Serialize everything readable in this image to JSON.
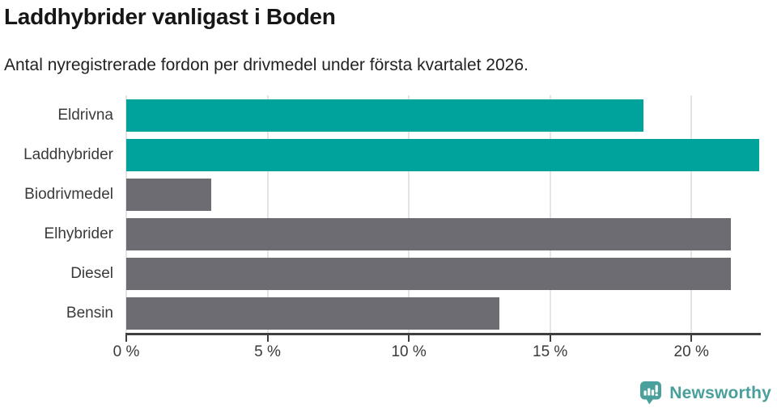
{
  "title": "Laddhybrider vanligast i Boden",
  "subtitle": "Antal nyregistrerade fordon per drivmedel under första kvartalet 2026.",
  "brand": {
    "name": "Newsworthy",
    "icon": "newsworthy-speech-bubble-barchart-icon",
    "color": "#49a09b"
  },
  "colors": {
    "accent_teal": "#00a39b",
    "neutral_gray": "#6c6c72",
    "gridline": "#e3e4e6",
    "axis": "#3f3f3f",
    "title_text": "#161616",
    "label_text": "#3a3a3a",
    "background": "#ffffff"
  },
  "chart_data": {
    "type": "bar",
    "orientation": "horizontal",
    "title": "Laddhybrider vanligast i Boden",
    "subtitle": "Antal nyregistrerade fordon per drivmedel under första kvartalet 2026.",
    "categories": [
      "Eldrivna",
      "Laddhybrider",
      "Biodrivmedel",
      "Elhybrider",
      "Diesel",
      "Bensin"
    ],
    "values": [
      18.3,
      22.4,
      3.0,
      21.4,
      21.4,
      13.2
    ],
    "unit": "%",
    "bar_colors": [
      "#00a39b",
      "#00a39b",
      "#6c6c72",
      "#6c6c72",
      "#6c6c72",
      "#6c6c72"
    ],
    "highlighted_categories": [
      "Eldrivna",
      "Laddhybrider"
    ],
    "xlim": [
      0,
      22.4
    ],
    "x_ticks": [
      0,
      5,
      10,
      15,
      20
    ],
    "x_tick_labels": [
      "0 %",
      "5 %",
      "10 %",
      "15 %",
      "20 %"
    ],
    "grid": "vertical-gridlines",
    "legend": "none"
  }
}
